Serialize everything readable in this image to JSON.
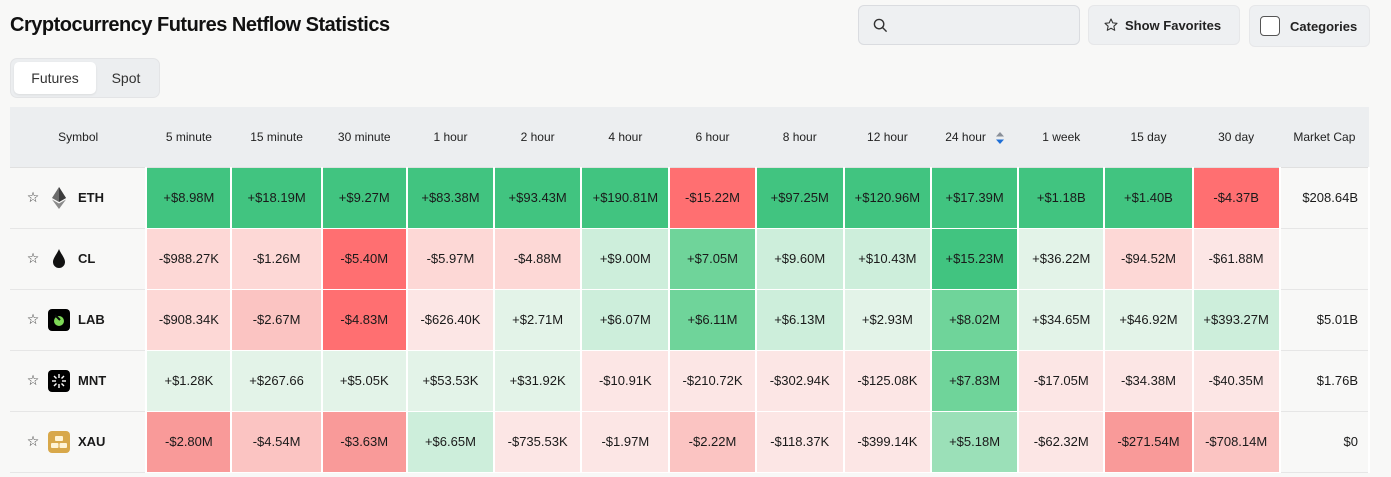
{
  "title": "Cryptocurrency Futures Netflow Statistics",
  "search": {
    "placeholder": ""
  },
  "buttons": {
    "favorites": "Show Favorites",
    "categories": "Categories"
  },
  "tabs": [
    {
      "label": "Futures",
      "active": true
    },
    {
      "label": "Spot",
      "active": false
    }
  ],
  "columns": [
    "Symbol",
    "5 minute",
    "15 minute",
    "30 minute",
    "1 hour",
    "2 hour",
    "4 hour",
    "6 hour",
    "8 hour",
    "12 hour",
    "24 hour",
    "1 week",
    "15 day",
    "30 day",
    "Market Cap"
  ],
  "sorted_column": "24 hour",
  "colors": {
    "strong_green": "#41c480",
    "strong_red": "#ff6f71",
    "sort_arrow": "#1f6fd6"
  },
  "rows": [
    {
      "symbol": "ETH",
      "icon": "eth-icon",
      "values": [
        "+$8.98M",
        "+$18.19M",
        "+$9.27M",
        "+$83.38M",
        "+$93.43M",
        "+$190.81M",
        "-$15.22M",
        "+$97.25M",
        "+$120.96M",
        "+$17.39M",
        "+$1.18B",
        "+$1.40B",
        "-$4.37B"
      ],
      "market_cap": "$208.64B"
    },
    {
      "symbol": "CL",
      "icon": "oil-drop-icon",
      "values": [
        "-$988.27K",
        "-$1.26M",
        "-$5.40M",
        "-$5.97M",
        "-$4.88M",
        "+$9.00M",
        "+$7.05M",
        "+$9.60M",
        "+$10.43M",
        "+$15.23M",
        "+$36.22M",
        "-$94.52M",
        "-$61.88M"
      ],
      "market_cap": ""
    },
    {
      "symbol": "LAB",
      "icon": "lab-icon",
      "values": [
        "-$908.34K",
        "-$2.67M",
        "-$4.83M",
        "-$626.40K",
        "+$2.71M",
        "+$6.07M",
        "+$6.11M",
        "+$6.13M",
        "+$2.93M",
        "+$8.02M",
        "+$34.65M",
        "+$46.92M",
        "+$393.27M"
      ],
      "market_cap": "$5.01B"
    },
    {
      "symbol": "MNT",
      "icon": "mnt-icon",
      "values": [
        "+$1.28K",
        "+$267.66",
        "+$5.05K",
        "+$53.53K",
        "+$31.92K",
        "-$10.91K",
        "-$210.72K",
        "-$302.94K",
        "-$125.08K",
        "+$7.83M",
        "-$17.05M",
        "-$34.38M",
        "-$40.35M"
      ],
      "market_cap": "$1.76B"
    },
    {
      "symbol": "XAU",
      "icon": "gold-bars-icon",
      "values": [
        "-$2.80M",
        "-$4.54M",
        "-$3.63M",
        "+$6.65M",
        "-$735.53K",
        "-$1.97M",
        "-$2.22M",
        "-$118.37K",
        "-$399.14K",
        "+$5.18M",
        "-$62.32M",
        "-$271.54M",
        "-$708.14M"
      ],
      "market_cap": "$0"
    }
  ]
}
